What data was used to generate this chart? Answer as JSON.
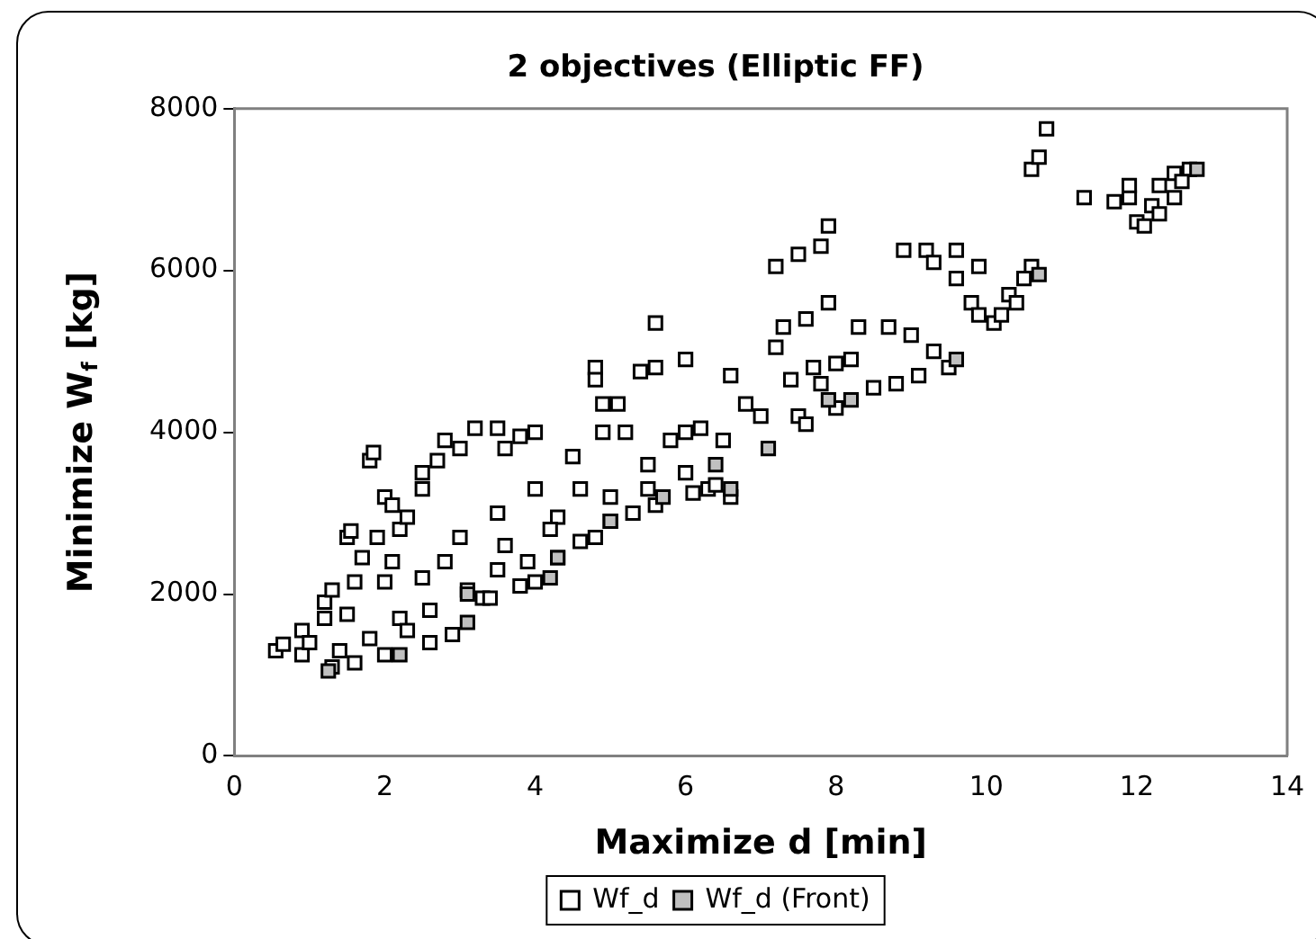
{
  "chart_data": {
    "type": "scatter",
    "title": "2 objectives (Elliptic FF)",
    "xlabel": "Maximize d [min]",
    "ylabel": "Minimize W$_{f}$ [kg]",
    "xlim": [
      0,
      14
    ],
    "xticks": [
      0,
      2,
      4,
      6,
      8,
      10,
      12,
      14
    ],
    "ylim": [
      0,
      8000
    ],
    "yticks": [
      0,
      2000,
      4000,
      6000,
      8000
    ],
    "grid": false,
    "legend": "bottom",
    "marker": "square",
    "series": [
      {
        "name": "Wf_d",
        "color": "#ffffff",
        "x": [
          0.55,
          0.65,
          0.9,
          0.9,
          1.2,
          1.2,
          1.3,
          1.5,
          1.55,
          1.6,
          1.8,
          1.85,
          1.7,
          1.9,
          2.0,
          2.1,
          2.1,
          2.2,
          2.3,
          2.5,
          2.5,
          2.7,
          2.8,
          3.0,
          3.2,
          3.5,
          3.6,
          3.8,
          4.0,
          3.0,
          2.8,
          2.5,
          2.0,
          1.5,
          1.8,
          2.2,
          3.5,
          3.9,
          4.3,
          4.5,
          4.8,
          4.8,
          4.9,
          5.1,
          4.9,
          5.2,
          5.4,
          5.6,
          5.5,
          5.8,
          6.0,
          6.2,
          6.0,
          5.5,
          5.0,
          4.6,
          4.0,
          3.5,
          5.6,
          6.0,
          6.6,
          6.8,
          7.0,
          6.5,
          7.2,
          7.5,
          7.8,
          7.9,
          7.9,
          7.6,
          7.3,
          7.2,
          7.4,
          7.7,
          8.0,
          8.2,
          8.3,
          8.7,
          8.9,
          9.2,
          9.3,
          9.0,
          9.6,
          9.9,
          9.6,
          9.8,
          9.9,
          10.6,
          10.6,
          10.7,
          10.8,
          11.3,
          11.7,
          11.9,
          11.9,
          12.3,
          12.5,
          12.7,
          7.5,
          7.8,
          9.3,
          10.3,
          10.5,
          12.0,
          12.2,
          12.6,
          1.3,
          2.3,
          3.3,
          4.3,
          4.8,
          6.6,
          8.5,
          9.5,
          10.1,
          12.1,
          1.0,
          1.4,
          2.6,
          3.1,
          3.6,
          4.2,
          5.0,
          5.6,
          6.3,
          1.6,
          2.0,
          2.6,
          2.9,
          3.4,
          3.8,
          4.0,
          4.6,
          5.3,
          6.1,
          6.4,
          7.6,
          8.0,
          8.8,
          9.1,
          10.2,
          10.4,
          12.3,
          12.5
        ],
        "values": [
          1300,
          1380,
          1550,
          1250,
          1700,
          1900,
          2050,
          2700,
          2780,
          2150,
          3650,
          3750,
          2450,
          2700,
          3200,
          3100,
          2400,
          2800,
          2950,
          3300,
          3500,
          3650,
          3900,
          3800,
          4050,
          4050,
          3800,
          3950,
          4000,
          2700,
          2400,
          2200,
          2150,
          1750,
          1450,
          1700,
          2300,
          2400,
          2950,
          3700,
          4800,
          4650,
          4350,
          4350,
          4000,
          4000,
          4750,
          4800,
          3600,
          3900,
          4000,
          4050,
          3500,
          3300,
          3200,
          3300,
          3300,
          3000,
          5350,
          4900,
          4700,
          4350,
          4200,
          3900,
          6050,
          6200,
          6300,
          6550,
          5600,
          5400,
          5300,
          5050,
          4650,
          4800,
          4850,
          4900,
          5300,
          5300,
          6250,
          6250,
          6100,
          5200,
          6250,
          6050,
          5900,
          5600,
          5450,
          6050,
          7250,
          7400,
          7750,
          6900,
          6850,
          6900,
          7050,
          7050,
          7200,
          7250,
          4200,
          4600,
          5000,
          5700,
          5900,
          6600,
          6800,
          7100,
          1100,
          1550,
          1950,
          2450,
          2700,
          3200,
          4550,
          4800,
          5350,
          6550,
          1400,
          1300,
          1800,
          2050,
          2600,
          2800,
          2900,
          3100,
          3300,
          1150,
          1250,
          1400,
          1500,
          1950,
          2100,
          2150,
          2650,
          3000,
          3250,
          3350,
          4100,
          4300,
          4600,
          4700,
          5450,
          5600,
          6700,
          6900
        ]
      },
      {
        "name": "Wf_d (Front)",
        "color": "#c0c0c0",
        "x": [
          1.25,
          2.2,
          3.1,
          3.1,
          4.2,
          4.3,
          5.0,
          5.7,
          6.6,
          6.4,
          7.1,
          7.9,
          8.2,
          9.6,
          10.7,
          12.8
        ],
        "values": [
          1050,
          1250,
          1650,
          2000,
          2200,
          2450,
          2900,
          3200,
          3300,
          3600,
          3800,
          4400,
          4400,
          4900,
          5950,
          7250
        ]
      }
    ]
  }
}
